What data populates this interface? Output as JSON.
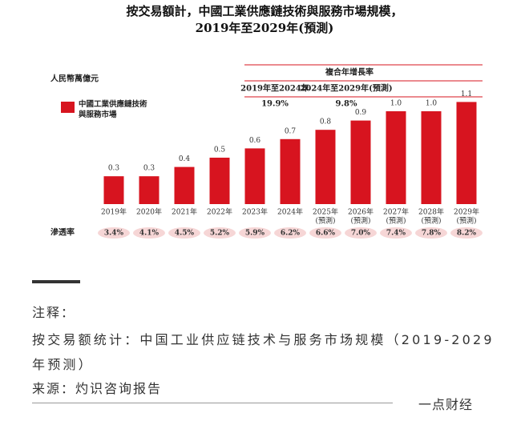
{
  "chart_data": {
    "type": "bar",
    "title": [
      "按交易額計，中國工業供應鏈技術與服務市場規模，",
      "2019年至2029年(預測)"
    ],
    "unit": "人民幣萬億元",
    "categories": [
      [
        "2019年"
      ],
      [
        "2020年"
      ],
      [
        "2021年"
      ],
      [
        "2022年"
      ],
      [
        "2023年"
      ],
      [
        "2024年"
      ],
      [
        "2025年",
        "(預測)"
      ],
      [
        "2026年",
        "(預測)"
      ],
      [
        "2027年",
        "(預測)"
      ],
      [
        "2028年",
        "(預測)"
      ],
      [
        "2029年",
        "(預測)"
      ]
    ],
    "series": [
      {
        "name": "中國工業供應鏈技術與服務市場",
        "color": "#d7141f",
        "values": [
          0.3,
          0.3,
          0.4,
          0.5,
          0.6,
          0.7,
          0.8,
          0.9,
          1.0,
          1.0,
          1.1
        ],
        "value_labels": [
          "0.3",
          "0.3",
          "0.4",
          "0.5",
          "0.6",
          "0.7",
          "0.8",
          "0.9",
          "1.0",
          "1.0",
          "1.1"
        ]
      }
    ],
    "cagr": {
      "title": "複合年增長率",
      "periods": [
        "2019年至2024年",
        "2024年至2029年(預測)"
      ],
      "values": [
        19.9,
        9.8
      ],
      "value_labels": [
        "19.9%",
        "9.8%"
      ]
    },
    "penetration": {
      "label": "滲透率",
      "values": [
        3.4,
        4.1,
        4.5,
        5.2,
        5.9,
        6.2,
        6.6,
        7.0,
        7.4,
        7.8,
        8.2
      ],
      "value_labels": [
        "3.4%",
        "4.1%",
        "4.5%",
        "5.2%",
        "5.9%",
        "6.2%",
        "6.6%",
        "7.0%",
        "7.4%",
        "7.8%",
        "8.2%"
      ]
    }
  },
  "notes": {
    "heading": "注释：",
    "text": "按交易额统计：中国工业供应链技术与服务市场规模（2019-2029 年预测）",
    "source": "来源：灼识咨询报告",
    "brand": "一点财经"
  }
}
